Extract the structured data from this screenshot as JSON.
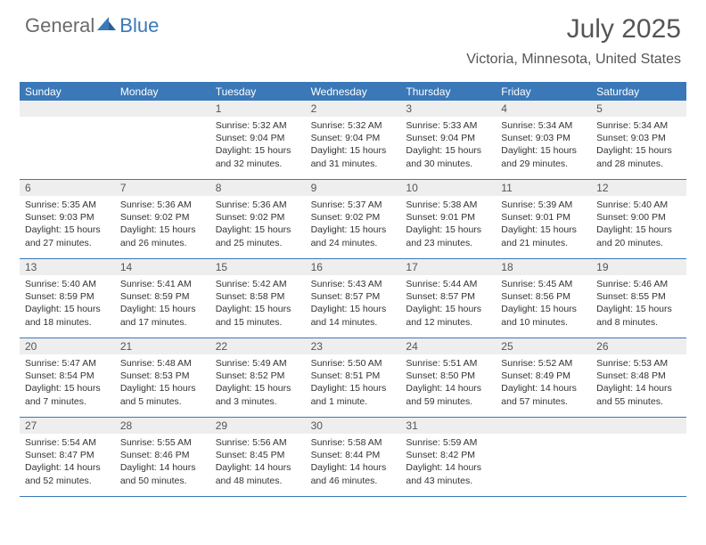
{
  "logo": {
    "part1": "General",
    "part2": "Blue"
  },
  "title": "July 2025",
  "location": "Victoria, Minnesota, United States",
  "colors": {
    "accent": "#3a78b8",
    "header_text": "#ffffff",
    "daynum_bg": "#eeeeee",
    "text": "#555555",
    "body_text": "#333333",
    "background": "#ffffff"
  },
  "dayNames": [
    "Sunday",
    "Monday",
    "Tuesday",
    "Wednesday",
    "Thursday",
    "Friday",
    "Saturday"
  ],
  "weeks": [
    [
      {
        "empty": true
      },
      {
        "empty": true
      },
      {
        "num": "1",
        "sunrise": "5:32 AM",
        "sunset": "9:04 PM",
        "daylight": "15 hours and 32 minutes."
      },
      {
        "num": "2",
        "sunrise": "5:32 AM",
        "sunset": "9:04 PM",
        "daylight": "15 hours and 31 minutes."
      },
      {
        "num": "3",
        "sunrise": "5:33 AM",
        "sunset": "9:04 PM",
        "daylight": "15 hours and 30 minutes."
      },
      {
        "num": "4",
        "sunrise": "5:34 AM",
        "sunset": "9:03 PM",
        "daylight": "15 hours and 29 minutes."
      },
      {
        "num": "5",
        "sunrise": "5:34 AM",
        "sunset": "9:03 PM",
        "daylight": "15 hours and 28 minutes."
      }
    ],
    [
      {
        "num": "6",
        "sunrise": "5:35 AM",
        "sunset": "9:03 PM",
        "daylight": "15 hours and 27 minutes."
      },
      {
        "num": "7",
        "sunrise": "5:36 AM",
        "sunset": "9:02 PM",
        "daylight": "15 hours and 26 minutes."
      },
      {
        "num": "8",
        "sunrise": "5:36 AM",
        "sunset": "9:02 PM",
        "daylight": "15 hours and 25 minutes."
      },
      {
        "num": "9",
        "sunrise": "5:37 AM",
        "sunset": "9:02 PM",
        "daylight": "15 hours and 24 minutes."
      },
      {
        "num": "10",
        "sunrise": "5:38 AM",
        "sunset": "9:01 PM",
        "daylight": "15 hours and 23 minutes."
      },
      {
        "num": "11",
        "sunrise": "5:39 AM",
        "sunset": "9:01 PM",
        "daylight": "15 hours and 21 minutes."
      },
      {
        "num": "12",
        "sunrise": "5:40 AM",
        "sunset": "9:00 PM",
        "daylight": "15 hours and 20 minutes."
      }
    ],
    [
      {
        "num": "13",
        "sunrise": "5:40 AM",
        "sunset": "8:59 PM",
        "daylight": "15 hours and 18 minutes."
      },
      {
        "num": "14",
        "sunrise": "5:41 AM",
        "sunset": "8:59 PM",
        "daylight": "15 hours and 17 minutes."
      },
      {
        "num": "15",
        "sunrise": "5:42 AM",
        "sunset": "8:58 PM",
        "daylight": "15 hours and 15 minutes."
      },
      {
        "num": "16",
        "sunrise": "5:43 AM",
        "sunset": "8:57 PM",
        "daylight": "15 hours and 14 minutes."
      },
      {
        "num": "17",
        "sunrise": "5:44 AM",
        "sunset": "8:57 PM",
        "daylight": "15 hours and 12 minutes."
      },
      {
        "num": "18",
        "sunrise": "5:45 AM",
        "sunset": "8:56 PM",
        "daylight": "15 hours and 10 minutes."
      },
      {
        "num": "19",
        "sunrise": "5:46 AM",
        "sunset": "8:55 PM",
        "daylight": "15 hours and 8 minutes."
      }
    ],
    [
      {
        "num": "20",
        "sunrise": "5:47 AM",
        "sunset": "8:54 PM",
        "daylight": "15 hours and 7 minutes."
      },
      {
        "num": "21",
        "sunrise": "5:48 AM",
        "sunset": "8:53 PM",
        "daylight": "15 hours and 5 minutes."
      },
      {
        "num": "22",
        "sunrise": "5:49 AM",
        "sunset": "8:52 PM",
        "daylight": "15 hours and 3 minutes."
      },
      {
        "num": "23",
        "sunrise": "5:50 AM",
        "sunset": "8:51 PM",
        "daylight": "15 hours and 1 minute."
      },
      {
        "num": "24",
        "sunrise": "5:51 AM",
        "sunset": "8:50 PM",
        "daylight": "14 hours and 59 minutes."
      },
      {
        "num": "25",
        "sunrise": "5:52 AM",
        "sunset": "8:49 PM",
        "daylight": "14 hours and 57 minutes."
      },
      {
        "num": "26",
        "sunrise": "5:53 AM",
        "sunset": "8:48 PM",
        "daylight": "14 hours and 55 minutes."
      }
    ],
    [
      {
        "num": "27",
        "sunrise": "5:54 AM",
        "sunset": "8:47 PM",
        "daylight": "14 hours and 52 minutes."
      },
      {
        "num": "28",
        "sunrise": "5:55 AM",
        "sunset": "8:46 PM",
        "daylight": "14 hours and 50 minutes."
      },
      {
        "num": "29",
        "sunrise": "5:56 AM",
        "sunset": "8:45 PM",
        "daylight": "14 hours and 48 minutes."
      },
      {
        "num": "30",
        "sunrise": "5:58 AM",
        "sunset": "8:44 PM",
        "daylight": "14 hours and 46 minutes."
      },
      {
        "num": "31",
        "sunrise": "5:59 AM",
        "sunset": "8:42 PM",
        "daylight": "14 hours and 43 minutes."
      },
      {
        "empty": true
      },
      {
        "empty": true
      }
    ]
  ],
  "labels": {
    "sunrise": "Sunrise: ",
    "sunset": "Sunset: ",
    "daylight": "Daylight: "
  }
}
